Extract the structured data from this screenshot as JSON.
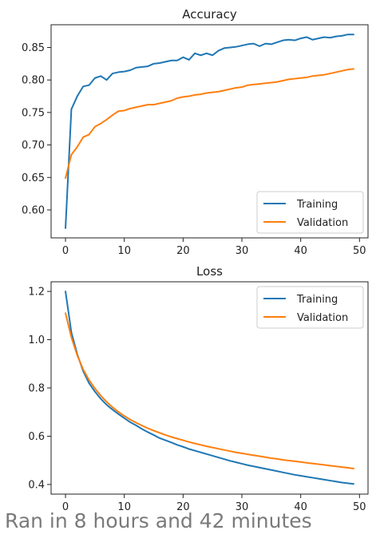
{
  "caption": "Ran in 8 hours and 42 minutes",
  "colors": {
    "training": "#1f77b4",
    "validation": "#ff7f0e"
  },
  "chart_data": [
    {
      "type": "line",
      "title": "Accuracy",
      "xlabel": "",
      "ylabel": "",
      "xlim": [
        -2.45,
        51.45
      ],
      "ylim": [
        0.557,
        0.885
      ],
      "xticks": [
        0,
        10,
        20,
        30,
        40,
        50
      ],
      "yticks": [
        0.6,
        0.65,
        0.7,
        0.75,
        0.8,
        0.85
      ],
      "ytick_labels": [
        "0.60",
        "0.65",
        "0.70",
        "0.75",
        "0.80",
        "0.85"
      ],
      "grid": false,
      "legend": "lower-right",
      "series": [
        {
          "name": "Training",
          "color": "#1f77b4",
          "x": [
            0,
            1,
            2,
            3,
            4,
            5,
            6,
            7,
            8,
            9,
            10,
            11,
            12,
            13,
            14,
            15,
            16,
            17,
            18,
            19,
            20,
            21,
            22,
            23,
            24,
            25,
            26,
            27,
            28,
            29,
            30,
            31,
            32,
            33,
            34,
            35,
            36,
            37,
            38,
            39,
            40,
            41,
            42,
            43,
            44,
            45,
            46,
            47,
            48,
            49
          ],
          "values": [
            0.572,
            0.755,
            0.775,
            0.79,
            0.792,
            0.803,
            0.806,
            0.8,
            0.81,
            0.812,
            0.813,
            0.815,
            0.819,
            0.82,
            0.821,
            0.825,
            0.826,
            0.828,
            0.83,
            0.83,
            0.835,
            0.831,
            0.841,
            0.838,
            0.841,
            0.838,
            0.845,
            0.849,
            0.85,
            0.851,
            0.853,
            0.855,
            0.856,
            0.852,
            0.856,
            0.855,
            0.858,
            0.861,
            0.862,
            0.861,
            0.864,
            0.866,
            0.862,
            0.864,
            0.866,
            0.865,
            0.867,
            0.868,
            0.87,
            0.87
          ]
        },
        {
          "name": "Validation",
          "color": "#ff7f0e",
          "x": [
            0,
            1,
            2,
            3,
            4,
            5,
            6,
            7,
            8,
            9,
            10,
            11,
            12,
            13,
            14,
            15,
            16,
            17,
            18,
            19,
            20,
            21,
            22,
            23,
            24,
            25,
            26,
            27,
            28,
            29,
            30,
            31,
            32,
            33,
            34,
            35,
            36,
            37,
            38,
            39,
            40,
            41,
            42,
            43,
            44,
            45,
            46,
            47,
            48,
            49
          ],
          "values": [
            0.649,
            0.685,
            0.697,
            0.712,
            0.716,
            0.728,
            0.733,
            0.739,
            0.746,
            0.752,
            0.753,
            0.756,
            0.758,
            0.76,
            0.762,
            0.762,
            0.764,
            0.766,
            0.768,
            0.772,
            0.774,
            0.775,
            0.777,
            0.778,
            0.78,
            0.781,
            0.782,
            0.784,
            0.786,
            0.788,
            0.789,
            0.792,
            0.793,
            0.794,
            0.795,
            0.796,
            0.797,
            0.799,
            0.801,
            0.802,
            0.803,
            0.804,
            0.806,
            0.807,
            0.808,
            0.81,
            0.812,
            0.814,
            0.816,
            0.817
          ]
        }
      ]
    },
    {
      "type": "line",
      "title": "Loss",
      "xlabel": "",
      "ylabel": "",
      "xlim": [
        -2.45,
        51.45
      ],
      "ylim": [
        0.36,
        1.24
      ],
      "xticks": [
        0,
        10,
        20,
        30,
        40,
        50
      ],
      "yticks": [
        0.4,
        0.6,
        0.8,
        1.0,
        1.2
      ],
      "ytick_labels": [
        "0.4",
        "0.6",
        "0.8",
        "1.0",
        "1.2"
      ],
      "grid": false,
      "legend": "top-right",
      "series": [
        {
          "name": "Training",
          "color": "#1f77b4",
          "x": [
            0,
            1,
            2,
            3,
            4,
            5,
            6,
            7,
            8,
            9,
            10,
            11,
            12,
            13,
            14,
            15,
            16,
            17,
            18,
            19,
            20,
            21,
            22,
            23,
            24,
            25,
            26,
            27,
            28,
            29,
            30,
            31,
            32,
            33,
            34,
            35,
            36,
            37,
            38,
            39,
            40,
            41,
            42,
            43,
            44,
            45,
            46,
            47,
            48,
            49
          ],
          "values": [
            1.2,
            1.03,
            0.94,
            0.87,
            0.82,
            0.785,
            0.755,
            0.73,
            0.71,
            0.692,
            0.675,
            0.658,
            0.645,
            0.63,
            0.617,
            0.605,
            0.592,
            0.583,
            0.574,
            0.564,
            0.556,
            0.547,
            0.54,
            0.533,
            0.526,
            0.519,
            0.512,
            0.505,
            0.498,
            0.492,
            0.486,
            0.48,
            0.475,
            0.47,
            0.465,
            0.46,
            0.455,
            0.45,
            0.445,
            0.44,
            0.436,
            0.432,
            0.428,
            0.424,
            0.42,
            0.416,
            0.412,
            0.408,
            0.405,
            0.402
          ]
        },
        {
          "name": "Validation",
          "color": "#ff7f0e",
          "x": [
            0,
            1,
            2,
            3,
            4,
            5,
            6,
            7,
            8,
            9,
            10,
            11,
            12,
            13,
            14,
            15,
            16,
            17,
            18,
            19,
            20,
            21,
            22,
            23,
            24,
            25,
            26,
            27,
            28,
            29,
            30,
            31,
            32,
            33,
            34,
            35,
            36,
            37,
            38,
            39,
            40,
            41,
            42,
            43,
            44,
            45,
            46,
            47,
            48,
            49
          ],
          "values": [
            1.11,
            1.01,
            0.935,
            0.877,
            0.833,
            0.798,
            0.768,
            0.742,
            0.72,
            0.701,
            0.684,
            0.669,
            0.656,
            0.644,
            0.633,
            0.623,
            0.614,
            0.605,
            0.597,
            0.59,
            0.583,
            0.576,
            0.57,
            0.564,
            0.558,
            0.553,
            0.548,
            0.543,
            0.538,
            0.533,
            0.529,
            0.525,
            0.521,
            0.517,
            0.513,
            0.509,
            0.506,
            0.502,
            0.499,
            0.496,
            0.493,
            0.49,
            0.487,
            0.484,
            0.481,
            0.478,
            0.475,
            0.472,
            0.469,
            0.466
          ]
        }
      ]
    }
  ]
}
